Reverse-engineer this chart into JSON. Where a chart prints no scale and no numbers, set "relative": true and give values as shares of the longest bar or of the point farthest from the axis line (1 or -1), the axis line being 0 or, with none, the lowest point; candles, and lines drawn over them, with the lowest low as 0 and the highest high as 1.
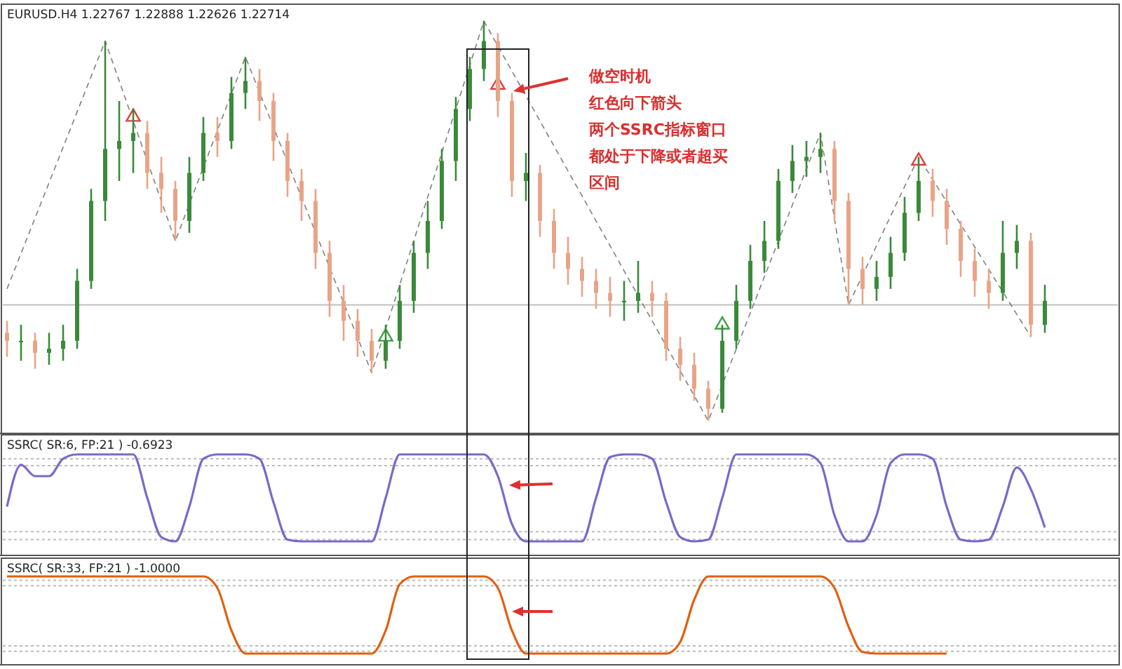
{
  "chart_data": [
    {
      "type": "candlestick",
      "title": "EURUSD.H4  1.22767 1.22888 1.22626 1.22714",
      "relative": true,
      "categories": [
        null,
        null,
        null,
        null,
        null,
        null,
        null,
        null,
        null,
        null,
        null,
        null,
        null,
        null,
        null,
        null,
        null,
        null,
        null,
        null,
        null,
        null,
        null,
        null,
        null,
        null,
        null,
        null,
        null,
        null,
        null,
        null,
        null,
        null,
        null,
        null,
        null,
        null,
        null,
        null,
        null,
        null,
        null,
        null,
        null,
        null,
        null,
        null,
        null,
        null,
        null,
        null,
        null,
        null,
        null,
        null,
        null,
        null,
        null,
        null,
        null,
        null,
        null,
        null,
        null,
        null,
        null,
        null,
        null,
        null,
        null,
        null,
        null,
        null,
        null
      ],
      "ohlc": [
        [
          0.22,
          0.25,
          0.16,
          0.2
        ],
        [
          0.2,
          0.24,
          0.15,
          0.2
        ],
        [
          0.2,
          0.22,
          0.13,
          0.17
        ],
        [
          0.17,
          0.22,
          0.14,
          0.18
        ],
        [
          0.18,
          0.24,
          0.15,
          0.2
        ],
        [
          0.2,
          0.38,
          0.18,
          0.35
        ],
        [
          0.35,
          0.58,
          0.33,
          0.55
        ],
        [
          0.55,
          0.95,
          0.5,
          0.68
        ],
        [
          0.68,
          0.8,
          0.6,
          0.7
        ],
        [
          0.7,
          0.78,
          0.62,
          0.72
        ],
        [
          0.72,
          0.75,
          0.58,
          0.62
        ],
        [
          0.62,
          0.66,
          0.52,
          0.58
        ],
        [
          0.58,
          0.6,
          0.45,
          0.5
        ],
        [
          0.5,
          0.66,
          0.47,
          0.62
        ],
        [
          0.62,
          0.76,
          0.6,
          0.72
        ],
        [
          0.72,
          0.76,
          0.66,
          0.7
        ],
        [
          0.7,
          0.86,
          0.68,
          0.82
        ],
        [
          0.82,
          0.91,
          0.78,
          0.85
        ],
        [
          0.85,
          0.88,
          0.75,
          0.8
        ],
        [
          0.8,
          0.82,
          0.65,
          0.7
        ],
        [
          0.7,
          0.72,
          0.56,
          0.6
        ],
        [
          0.6,
          0.63,
          0.5,
          0.55
        ],
        [
          0.55,
          0.58,
          0.38,
          0.42
        ],
        [
          0.42,
          0.45,
          0.26,
          0.3
        ],
        [
          0.3,
          0.34,
          0.2,
          0.25
        ],
        [
          0.25,
          0.28,
          0.16,
          0.2
        ],
        [
          0.2,
          0.23,
          0.12,
          0.15
        ],
        [
          0.15,
          0.24,
          0.13,
          0.2
        ],
        [
          0.2,
          0.34,
          0.18,
          0.3
        ],
        [
          0.3,
          0.45,
          0.27,
          0.42
        ],
        [
          0.42,
          0.55,
          0.38,
          0.5
        ],
        [
          0.5,
          0.68,
          0.48,
          0.65
        ],
        [
          0.65,
          0.81,
          0.6,
          0.78
        ],
        [
          0.78,
          0.91,
          0.75,
          0.88
        ],
        [
          0.88,
          1,
          0.85,
          0.95
        ],
        [
          0.95,
          0.97,
          0.76,
          0.8
        ],
        [
          0.8,
          0.82,
          0.56,
          0.6
        ],
        [
          0.6,
          0.67,
          0.55,
          0.62
        ],
        [
          0.62,
          0.64,
          0.46,
          0.5
        ],
        [
          0.5,
          0.53,
          0.38,
          0.42
        ],
        [
          0.42,
          0.46,
          0.34,
          0.38
        ],
        [
          0.38,
          0.41,
          0.31,
          0.35
        ],
        [
          0.35,
          0.38,
          0.28,
          0.32
        ],
        [
          0.32,
          0.36,
          0.26,
          0.3
        ],
        [
          0.3,
          0.35,
          0.25,
          0.3
        ],
        [
          0.3,
          0.4,
          0.27,
          0.32
        ],
        [
          0.32,
          0.35,
          0.26,
          0.3
        ],
        [
          0.3,
          0.32,
          0.15,
          0.18
        ],
        [
          0.18,
          0.21,
          0.1,
          0.14
        ],
        [
          0.14,
          0.17,
          0.05,
          0.08
        ],
        [
          0.08,
          0.1,
          0,
          0.03
        ],
        [
          0.03,
          0.24,
          0.02,
          0.2
        ],
        [
          0.2,
          0.34,
          0.18,
          0.3
        ],
        [
          0.3,
          0.44,
          0.28,
          0.4
        ],
        [
          0.4,
          0.5,
          0.37,
          0.45
        ],
        [
          0.45,
          0.63,
          0.43,
          0.6
        ],
        [
          0.6,
          0.69,
          0.57,
          0.65
        ],
        [
          0.65,
          0.7,
          0.61,
          0.66
        ],
        [
          0.66,
          0.72,
          0.62,
          0.68
        ],
        [
          0.68,
          0.7,
          0.5,
          0.55
        ],
        [
          0.55,
          0.57,
          0.29,
          0.38
        ],
        [
          0.38,
          0.41,
          0.29,
          0.33
        ],
        [
          0.33,
          0.4,
          0.3,
          0.36
        ],
        [
          0.36,
          0.46,
          0.33,
          0.42
        ],
        [
          0.42,
          0.56,
          0.4,
          0.52
        ],
        [
          0.52,
          0.66,
          0.5,
          0.6
        ],
        [
          0.6,
          0.63,
          0.51,
          0.55
        ],
        [
          0.55,
          0.58,
          0.44,
          0.48
        ],
        [
          0.48,
          0.5,
          0.36,
          0.4
        ],
        [
          0.4,
          0.43,
          0.31,
          0.35
        ],
        [
          0.35,
          0.38,
          0.28,
          0.32
        ],
        [
          0.32,
          0.5,
          0.3,
          0.42
        ],
        [
          0.42,
          0.49,
          0.38,
          0.45
        ],
        [
          0.45,
          0.47,
          0.21,
          0.24
        ],
        [
          0.24,
          0.34,
          0.22,
          0.3
        ]
      ],
      "series": [
        {
          "type": "line",
          "color": "#808080",
          "line_style": "dashed",
          "values": [
            0.33,
            null,
            null,
            null,
            null,
            null,
            null,
            0.95,
            null,
            null,
            null,
            null,
            0.45,
            null,
            null,
            null,
            null,
            0.91,
            null,
            null,
            null,
            null,
            null,
            null,
            null,
            null,
            0.12,
            null,
            null,
            null,
            null,
            null,
            null,
            null,
            1,
            null,
            null,
            null,
            null,
            null,
            null,
            null,
            null,
            null,
            null,
            null,
            null,
            null,
            null,
            null,
            0,
            null,
            null,
            null,
            null,
            null,
            null,
            null,
            0.72,
            null,
            0.29,
            null,
            null,
            null,
            null,
            0.66,
            null,
            null,
            null,
            null,
            null,
            null,
            null,
            0.21,
            null
          ]
        },
        {
          "type": "scatter",
          "marker": "triangle",
          "color": "#e04040",
          "values": [
            null,
            null,
            null,
            null,
            null,
            null,
            null,
            null,
            null,
            0.76,
            null,
            null,
            null,
            null,
            null,
            null,
            null,
            null,
            null,
            null,
            null,
            null,
            null,
            null,
            null,
            null,
            null,
            null,
            null,
            null,
            null,
            null,
            null,
            null,
            null,
            0.84,
            null,
            null,
            null,
            null,
            null,
            null,
            null,
            null,
            null,
            null,
            null,
            null,
            null,
            null,
            null,
            null,
            null,
            null,
            null,
            null,
            null,
            null,
            null,
            null,
            null,
            null,
            null,
            null,
            null,
            0.65,
            null,
            null,
            null,
            null,
            null,
            null,
            null,
            null,
            null
          ]
        },
        {
          "type": "scatter",
          "marker": "triangle",
          "color": "#40a040",
          "values": [
            null,
            null,
            null,
            null,
            null,
            null,
            null,
            null,
            null,
            null,
            null,
            null,
            null,
            null,
            null,
            null,
            null,
            null,
            null,
            null,
            null,
            null,
            null,
            null,
            null,
            null,
            null,
            0.21,
            null,
            null,
            null,
            null,
            null,
            null,
            null,
            null,
            null,
            null,
            null,
            null,
            null,
            null,
            null,
            null,
            null,
            null,
            null,
            null,
            null,
            null,
            null,
            0.24,
            null,
            null,
            null,
            null,
            null,
            null,
            null,
            null,
            null,
            null,
            null,
            null,
            null,
            null,
            null,
            null,
            null,
            null,
            null,
            null,
            null,
            null,
            null
          ]
        }
      ],
      "ref_lines": [
        {
          "axis": "y",
          "value": 0.29,
          "color": "#c0c0c0"
        }
      ],
      "annotations": [
        "做空时机",
        "红色向下箭头",
        "两个SSRC指标窗口",
        "都处于下降或者超买",
        "区间"
      ]
    },
    {
      "type": "line",
      "title": "SSRC( SR:6, FP:21 ) -0.6923",
      "relative": true,
      "categories": [
        null,
        null,
        null,
        null,
        null,
        null,
        null,
        null,
        null,
        null,
        null,
        null,
        null,
        null,
        null,
        null,
        null,
        null,
        null,
        null,
        null,
        null,
        null,
        null,
        null,
        null,
        null,
        null,
        null,
        null,
        null,
        null,
        null,
        null,
        null,
        null,
        null,
        null,
        null,
        null,
        null,
        null,
        null,
        null,
        null,
        null,
        null,
        null,
        null,
        null,
        null,
        null,
        null,
        null,
        null,
        null,
        null,
        null,
        null,
        null,
        null,
        null,
        null,
        null,
        null,
        null,
        null,
        null,
        null,
        null,
        null,
        null,
        null,
        null,
        null
      ],
      "series": [
        {
          "color": "#7b68c8",
          "values": [
            0.4,
            0.88,
            0.75,
            0.75,
            0.95,
            1,
            1,
            1,
            1,
            1,
            0.5,
            0.05,
            0,
            0.4,
            0.95,
            1,
            1,
            1,
            0.95,
            0.45,
            0.02,
            0,
            0,
            0,
            0,
            0,
            0,
            0.5,
            1,
            1,
            1,
            1,
            1,
            1,
            1,
            0.75,
            0.2,
            0,
            0,
            0,
            0,
            0,
            0.5,
            0.97,
            1,
            1,
            0.95,
            0.45,
            0.05,
            0,
            0.02,
            0.5,
            1,
            1,
            1,
            1,
            1,
            1,
            0.9,
            0.3,
            0,
            0,
            0.3,
            0.9,
            1,
            1,
            0.95,
            0.4,
            0.02,
            0,
            0.02,
            0.4,
            0.85,
            0.6,
            0.16
          ]
        }
      ],
      "ref_lines": [
        {
          "axis": "y",
          "value": 0.95,
          "color": "#bbbbbb",
          "line_style": "dotted"
        },
        {
          "axis": "y",
          "value": 0.87,
          "color": "#bbbbbb",
          "line_style": "dotted"
        },
        {
          "axis": "y",
          "value": 0.11,
          "color": "#bbbbbb",
          "line_style": "dotted"
        },
        {
          "axis": "y",
          "value": 0.02,
          "color": "#bbbbbb",
          "line_style": "dotted"
        }
      ]
    },
    {
      "type": "line",
      "title": "SSRC( SR:33, FP:21 ) -1.0000",
      "relative": true,
      "categories": [
        null,
        null,
        null,
        null,
        null,
        null,
        null,
        null,
        null,
        null,
        null,
        null,
        null,
        null,
        null,
        null,
        null,
        null,
        null,
        null,
        null,
        null,
        null,
        null,
        null,
        null,
        null,
        null,
        null,
        null,
        null,
        null,
        null,
        null,
        null,
        null,
        null,
        null,
        null,
        null,
        null,
        null,
        null,
        null,
        null,
        null,
        null,
        null,
        null,
        null,
        null,
        null,
        null,
        null,
        null,
        null,
        null,
        null,
        null,
        null,
        null,
        null,
        null,
        null,
        null,
        null,
        null,
        null,
        null,
        null,
        null,
        null,
        null,
        null,
        null
      ],
      "series": [
        {
          "color": "#e0600f",
          "values": [
            1,
            1,
            1,
            1,
            1,
            1,
            1,
            1,
            1,
            1,
            1,
            1,
            1,
            1,
            1,
            0.85,
            0.3,
            0,
            0,
            0,
            0,
            0,
            0,
            0,
            0,
            0,
            0,
            0.3,
            0.9,
            1,
            1,
            1,
            1,
            1,
            1,
            0.85,
            0.3,
            0,
            0,
            0,
            0,
            0,
            0,
            0,
            0,
            0,
            0,
            0,
            0.15,
            0.7,
            1,
            1,
            1,
            1,
            1,
            1,
            1,
            1,
            1,
            0.85,
            0.35,
            0.02,
            0,
            0,
            0,
            0,
            0,
            0,
            null,
            null,
            null,
            null,
            null,
            null,
            null
          ]
        }
      ],
      "ref_lines": [
        {
          "axis": "y",
          "value": 0.95,
          "color": "#bbbbbb",
          "line_style": "dotted"
        },
        {
          "axis": "y",
          "value": 0.88,
          "color": "#bbbbbb",
          "line_style": "dotted"
        },
        {
          "axis": "y",
          "value": 0.1,
          "color": "#bbbbbb",
          "line_style": "dotted"
        },
        {
          "axis": "y",
          "value": 0.03,
          "color": "#bbbbbb",
          "line_style": "dotted"
        }
      ]
    }
  ]
}
